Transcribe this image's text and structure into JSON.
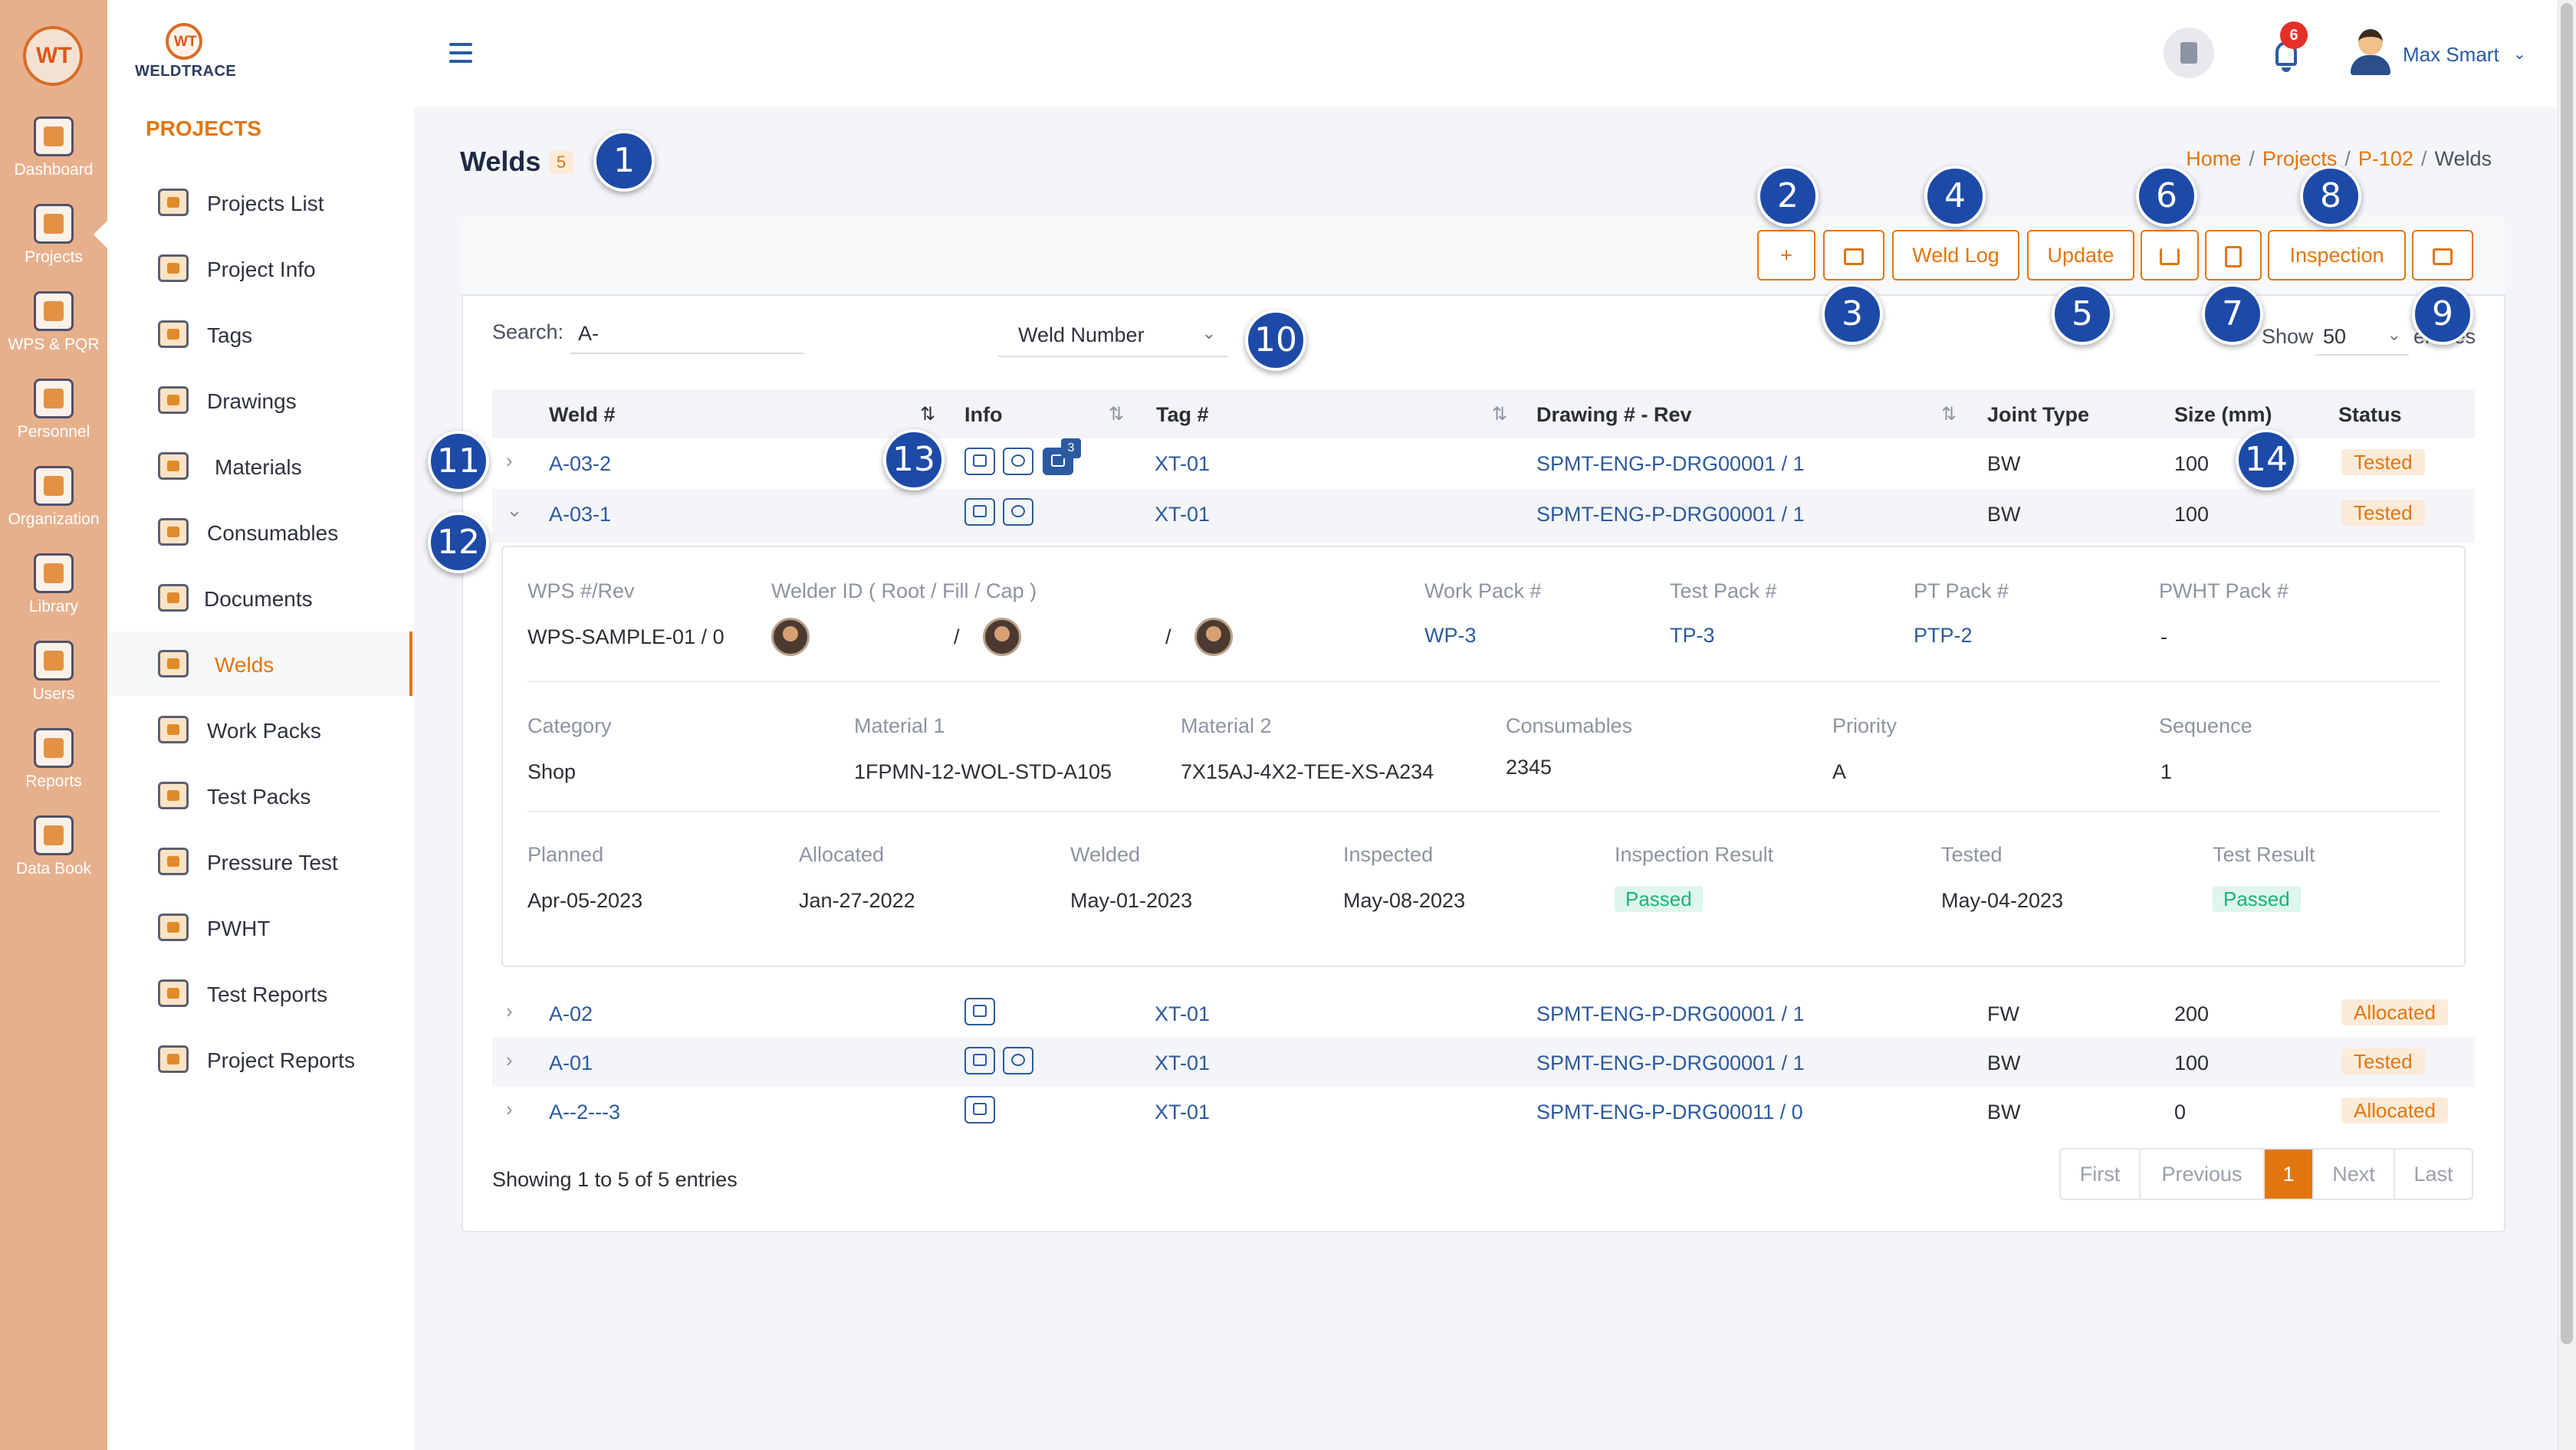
{
  "app": {
    "logo_text": "WT",
    "brand_name": "WELDTRACE"
  },
  "rail": [
    {
      "label": "Dashboard",
      "icon": "monitor-icon"
    },
    {
      "label": "Projects",
      "icon": "folder-gear-icon"
    },
    {
      "label": "WPS & PQR",
      "icon": "document-gear-icon"
    },
    {
      "label": "Personnel",
      "icon": "welder-helmet-icon"
    },
    {
      "label": "Organization",
      "icon": "organization-icon"
    },
    {
      "label": "Library",
      "icon": "library-icon"
    },
    {
      "label": "Users",
      "icon": "users-icon"
    },
    {
      "label": "Reports",
      "icon": "reports-clipboard-icon"
    },
    {
      "label": "Data Book",
      "icon": "data-book-icon"
    }
  ],
  "sidebar": {
    "title": "PROJECTS",
    "items": [
      {
        "label": "Projects List",
        "icon": "projects-list-icon"
      },
      {
        "label": "Project Info",
        "icon": "project-info-icon"
      },
      {
        "label": "Tags",
        "icon": "tag-icon"
      },
      {
        "label": "Drawings",
        "icon": "drawing-icon"
      },
      {
        "label": "Materials",
        "icon": "materials-icon"
      },
      {
        "label": "Consumables",
        "icon": "consumables-icon"
      },
      {
        "label": "Documents",
        "icon": "documents-icon"
      },
      {
        "label": "Welds",
        "icon": "weld-icon",
        "active": true
      },
      {
        "label": "Work Packs",
        "icon": "work-pack-icon"
      },
      {
        "label": "Test Packs",
        "icon": "test-pack-icon"
      },
      {
        "label": "Pressure Test",
        "icon": "pressure-gauge-icon"
      },
      {
        "label": "PWHT",
        "icon": "pwht-heater-icon"
      },
      {
        "label": "Test Reports",
        "icon": "test-report-icon"
      },
      {
        "label": "Project Reports",
        "icon": "project-report-icon"
      }
    ]
  },
  "header": {
    "notification_count": "6",
    "user_name": "Max Smart",
    "caret": "⌄"
  },
  "page": {
    "title": "Welds",
    "count": "5",
    "breadcrumb": [
      "Home",
      "Projects",
      "P-102",
      "Welds"
    ],
    "separator": "/"
  },
  "toolbar": {
    "add_icon": "+",
    "weld_log": "Weld Log",
    "update": "Update",
    "inspection": "Inspection"
  },
  "filters": {
    "search_label": "Search:",
    "search_value": "A-",
    "field": "Weld Number",
    "show_label": "Show",
    "show_value": "50",
    "entries_label": "entries",
    "caret": "⌄"
  },
  "table": {
    "columns": [
      "Weld #",
      "Info",
      "Tag #",
      "Drawing # - Rev",
      "Joint Type",
      "Size (mm)",
      "Status"
    ],
    "sort_icon": "⇅",
    "chevron_collapsed": "›",
    "chevron_expanded": "⌄",
    "rows": [
      {
        "weld": "A-03-2",
        "tag": "XT-01",
        "drawing": "SPMT-ENG-P-DRG00001 / 1",
        "joint": "BW",
        "size": "100",
        "status": "Tested",
        "comments": "3"
      },
      {
        "weld": "A-03-1",
        "tag": "XT-01",
        "drawing": "SPMT-ENG-P-DRG00001 / 1",
        "joint": "BW",
        "size": "100",
        "status": "Tested"
      },
      {
        "weld": "A-02",
        "tag": "XT-01",
        "drawing": "SPMT-ENG-P-DRG00001 / 1",
        "joint": "FW",
        "size": "200",
        "status": "Allocated"
      },
      {
        "weld": "A-01",
        "tag": "XT-01",
        "drawing": "SPMT-ENG-P-DRG00001 / 1",
        "joint": "BW",
        "size": "100",
        "status": "Tested"
      },
      {
        "weld": "A--2---3",
        "tag": "XT-01",
        "drawing": "SPMT-ENG-P-DRG00011 / 0",
        "joint": "BW",
        "size": "0",
        "status": "Allocated"
      }
    ]
  },
  "detail": {
    "labels1": [
      "WPS #/Rev",
      "Welder ID ( Root / Fill / Cap )",
      "Work Pack #",
      "Test Pack #",
      "PT Pack #",
      "PWHT Pack #"
    ],
    "wps": "WPS-SAMPLE-01 / 0",
    "welder_sep": "/",
    "work_pack": "WP-3",
    "test_pack": "TP-3",
    "pt_pack": "PTP-2",
    "pwht_pack": "-",
    "labels2": [
      "Category",
      "Material 1",
      "Material 2",
      "Consumables",
      "Priority",
      "Sequence"
    ],
    "values2": [
      "Shop",
      "1FPMN-12-WOL-STD-A105",
      "7X15AJ-4X2-TEE-XS-A234",
      "2345",
      "A",
      "1"
    ],
    "labels3": [
      "Planned",
      "Allocated",
      "Welded",
      "Inspected",
      "Inspection Result",
      "Tested",
      "Test Result"
    ],
    "values3": [
      "Apr-05-2023",
      "Jan-27-2022",
      "May-01-2023",
      "May-08-2023",
      "Passed",
      "May-04-2023",
      "Passed"
    ]
  },
  "footer": {
    "showing": "Showing 1 to 5 of 5 entries",
    "pager": [
      "First",
      "Previous",
      "1",
      "Next",
      "Last"
    ]
  },
  "callouts": [
    "1",
    "2",
    "3",
    "4",
    "5",
    "6",
    "7",
    "8",
    "9",
    "10",
    "11",
    "12",
    "13",
    "14"
  ],
  "colors": {
    "accent": "#e2760e",
    "link": "#2c5aa0",
    "rail": "#e7b08d",
    "callout": "#1d4aa6",
    "passed": "#1fb27a"
  }
}
